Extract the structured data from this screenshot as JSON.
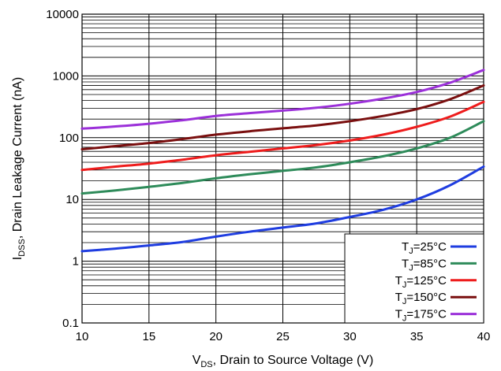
{
  "chart_data": {
    "type": "line",
    "xlabel": {
      "main": "V",
      "sub": "DS",
      "rest": ", Drain to Source Voltage (V)"
    },
    "ylabel": {
      "main": "I",
      "sub": "DSS",
      "rest": ", Drain Leakage Current (nA)"
    },
    "x_scale": "linear",
    "y_scale": "log",
    "xlim": [
      10,
      40
    ],
    "ylim": [
      0.1,
      10000
    ],
    "x_ticks": [
      "10",
      "15",
      "20",
      "25",
      "30",
      "35",
      "40"
    ],
    "y_ticks": [
      "0.1",
      "1",
      "10",
      "100",
      "1000",
      "10000"
    ],
    "grid": true,
    "legend_position": "bottom-right",
    "series": [
      {
        "name_main": "T",
        "name_sub": "J",
        "name_rest": "=25°C",
        "color": "#1f3de0",
        "x": [
          10,
          12.5,
          15,
          17.5,
          20,
          22.5,
          25,
          27.5,
          30,
          32.5,
          35,
          37.5,
          40
        ],
        "y": [
          1.45,
          1.6,
          1.8,
          2.05,
          2.5,
          3.0,
          3.5,
          4.1,
          5.2,
          6.8,
          10,
          17,
          34
        ]
      },
      {
        "name_main": "T",
        "name_sub": "J",
        "name_rest": "=85°C",
        "color": "#2e8b5a",
        "x": [
          10,
          12.5,
          15,
          17.5,
          20,
          22.5,
          25,
          27.5,
          30,
          32.5,
          35,
          37.5,
          40
        ],
        "y": [
          12.5,
          14,
          16,
          18.5,
          22,
          25.5,
          29,
          33,
          40,
          50,
          67,
          100,
          185
        ]
      },
      {
        "name_main": "T",
        "name_sub": "J",
        "name_rest": "=125°C",
        "color": "#ee1c1c",
        "x": [
          10,
          12.5,
          15,
          17.5,
          20,
          22.5,
          25,
          27.5,
          30,
          32.5,
          35,
          37.5,
          40
        ],
        "y": [
          30,
          34,
          38,
          44,
          52,
          59,
          67,
          76,
          90,
          112,
          150,
          220,
          380
        ]
      },
      {
        "name_main": "T",
        "name_sub": "J",
        "name_rest": "=150°C",
        "color": "#7a0f0f",
        "x": [
          10,
          12.5,
          15,
          17.5,
          20,
          22.5,
          25,
          27.5,
          30,
          32.5,
          35,
          37.5,
          40
        ],
        "y": [
          65,
          73,
          82,
          95,
          112,
          127,
          142,
          158,
          185,
          225,
          290,
          420,
          700
        ]
      },
      {
        "name_main": "T",
        "name_sub": "J",
        "name_rest": "=175°C",
        "color": "#9b30d9",
        "x": [
          10,
          12.5,
          15,
          17.5,
          20,
          22.5,
          25,
          27.5,
          30,
          32.5,
          35,
          37.5,
          40
        ],
        "y": [
          140,
          152,
          168,
          192,
          225,
          250,
          275,
          305,
          355,
          430,
          550,
          780,
          1250
        ]
      }
    ]
  }
}
